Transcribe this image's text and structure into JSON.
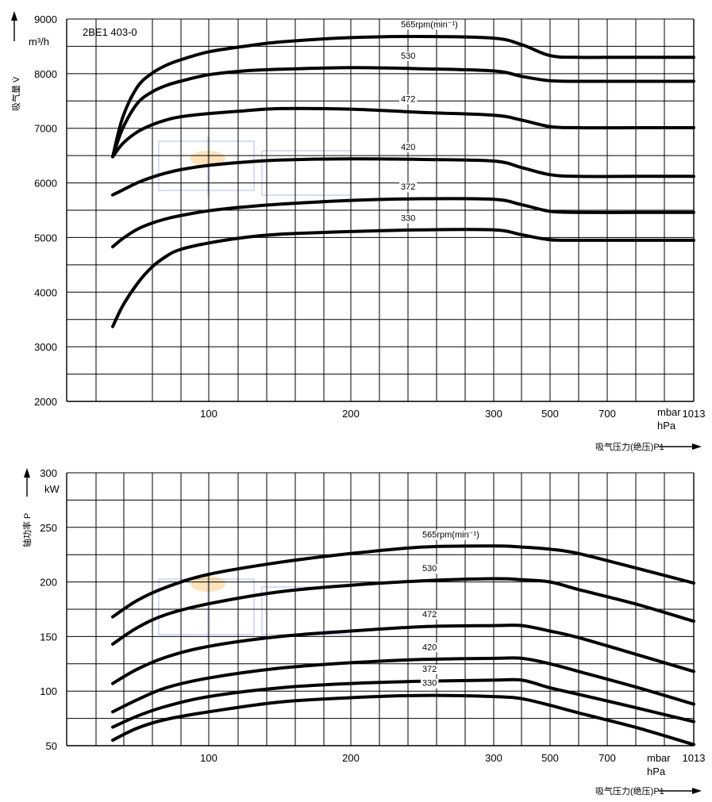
{
  "chart_data": [
    {
      "type": "line",
      "title": "2BE1 403-0",
      "ylabel": "吸气量 V̇",
      "yunit": "m³/h",
      "xlabel": "吸气压力(绝压)P1",
      "xunit_top": "mbar",
      "xunit_bottom": "hPa",
      "ylim": [
        2000,
        9000
      ],
      "xlim": [
        33,
        1013
      ],
      "yticks": [
        2000,
        3000,
        4000,
        5000,
        6000,
        7000,
        8000,
        9000
      ],
      "xticks": [
        100,
        200,
        300,
        500,
        700,
        1013
      ],
      "series": [
        {
          "name": "565rpm(min⁻¹)",
          "x": [
            33,
            40,
            50,
            60,
            70,
            80,
            100,
            125,
            150,
            200,
            250,
            300,
            400,
            500,
            600,
            800,
            1013
          ],
          "y": [
            6480,
            7200,
            7750,
            8000,
            8150,
            8250,
            8400,
            8500,
            8580,
            8660,
            8680,
            8650,
            8530,
            8330,
            8300,
            8300,
            8300
          ]
        },
        {
          "name": "530",
          "x": [
            33,
            40,
            50,
            60,
            70,
            80,
            100,
            125,
            150,
            200,
            250,
            300,
            400,
            500,
            600,
            800,
            1013
          ],
          "y": [
            6480,
            7000,
            7450,
            7660,
            7780,
            7860,
            7980,
            8050,
            8080,
            8110,
            8090,
            8050,
            7950,
            7870,
            7860,
            7860,
            7860
          ]
        },
        {
          "name": "472",
          "x": [
            33,
            40,
            50,
            60,
            70,
            80,
            100,
            125,
            150,
            200,
            250,
            300,
            400,
            500,
            600,
            800,
            1013
          ],
          "y": [
            6480,
            6720,
            6930,
            7060,
            7150,
            7210,
            7270,
            7320,
            7360,
            7350,
            7290,
            7240,
            7150,
            7030,
            7010,
            7010,
            7010
          ]
        },
        {
          "name": "420",
          "x": [
            33,
            40,
            50,
            60,
            70,
            80,
            100,
            125,
            150,
            200,
            250,
            300,
            400,
            500,
            600,
            800,
            1013
          ],
          "y": [
            5780,
            5870,
            6000,
            6100,
            6180,
            6240,
            6320,
            6380,
            6420,
            6440,
            6430,
            6400,
            6280,
            6150,
            6120,
            6120,
            6120
          ]
        },
        {
          "name": "372",
          "x": [
            33,
            40,
            50,
            60,
            70,
            80,
            100,
            125,
            150,
            200,
            250,
            300,
            400,
            500,
            600,
            800,
            1013
          ],
          "y": [
            4830,
            4980,
            5150,
            5260,
            5340,
            5400,
            5490,
            5560,
            5610,
            5680,
            5710,
            5700,
            5600,
            5480,
            5460,
            5460,
            5460
          ]
        },
        {
          "name": "330",
          "x": [
            33,
            40,
            50,
            60,
            70,
            80,
            100,
            125,
            150,
            200,
            250,
            300,
            400,
            500,
            600,
            800,
            1013
          ],
          "y": [
            3370,
            3750,
            4150,
            4450,
            4650,
            4780,
            4900,
            5000,
            5060,
            5110,
            5140,
            5140,
            5050,
            4960,
            4950,
            4950,
            4950
          ]
        }
      ],
      "series_labels_at": [
        235,
        235,
        235,
        235,
        235,
        235
      ]
    },
    {
      "type": "line",
      "title": "",
      "ylabel": "轴功率 P",
      "yunit": "kW",
      "xlabel": "吸气压力(绝压)P1",
      "xunit_top": "mbar",
      "xunit_bottom": "hPa",
      "ylim": [
        50,
        300
      ],
      "xlim": [
        33,
        1013
      ],
      "yticks": [
        50,
        100,
        150,
        200,
        250,
        300
      ],
      "xticks": [
        100,
        200,
        300,
        500,
        700,
        1013
      ],
      "series": [
        {
          "name": "565rpm(min⁻¹)",
          "x": [
            33,
            50,
            70,
            100,
            150,
            200,
            250,
            300,
            400,
            500,
            600,
            800,
            1013
          ],
          "y": [
            168,
            183,
            195,
            207,
            218,
            226,
            232,
            233,
            232,
            230,
            226,
            213,
            199
          ]
        },
        {
          "name": "530",
          "x": [
            33,
            50,
            70,
            100,
            150,
            200,
            250,
            300,
            400,
            500,
            600,
            800,
            1013
          ],
          "y": [
            143,
            158,
            170,
            180,
            191,
            197,
            201,
            203,
            202,
            200,
            193,
            180,
            164
          ]
        },
        {
          "name": "472",
          "x": [
            33,
            50,
            70,
            100,
            150,
            200,
            250,
            300,
            400,
            500,
            600,
            800,
            1013
          ],
          "y": [
            107,
            120,
            131,
            141,
            150,
            155,
            159,
            160,
            160,
            155,
            149,
            134,
            118
          ]
        },
        {
          "name": "420",
          "x": [
            33,
            50,
            70,
            100,
            150,
            200,
            250,
            300,
            400,
            500,
            600,
            800,
            1013
          ],
          "y": [
            81,
            92,
            103,
            112,
            121,
            126,
            129,
            130,
            130,
            125,
            118,
            104,
            88
          ]
        },
        {
          "name": "372",
          "x": [
            33,
            50,
            70,
            100,
            150,
            200,
            250,
            300,
            400,
            500,
            600,
            800,
            1013
          ],
          "y": [
            67,
            77,
            86,
            95,
            103,
            107,
            109,
            110,
            110,
            103,
            97,
            85,
            72
          ]
        },
        {
          "name": "330",
          "x": [
            33,
            50,
            70,
            100,
            150,
            200,
            250,
            300,
            400,
            500,
            600,
            800,
            1013
          ],
          "y": [
            55,
            66,
            74,
            81,
            90,
            94,
            96,
            95,
            93,
            87,
            80,
            67,
            51
          ]
        }
      ],
      "series_labels_at": [
        250,
        250,
        250,
        250,
        250,
        250
      ]
    }
  ]
}
